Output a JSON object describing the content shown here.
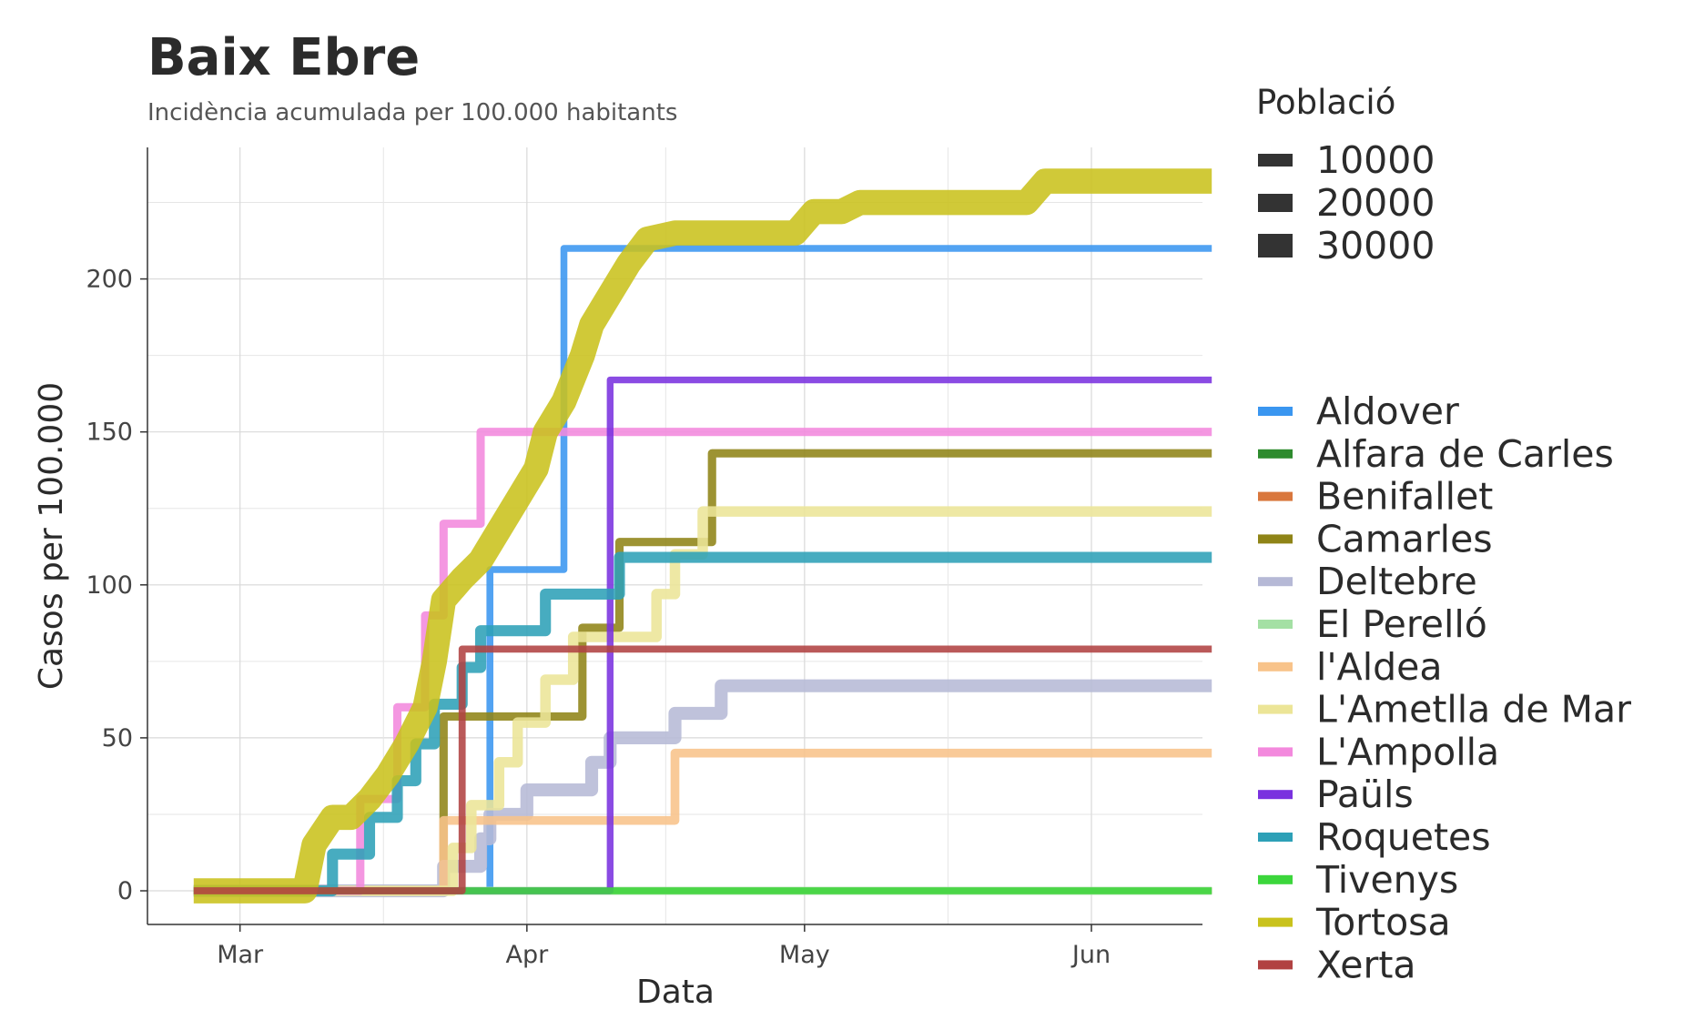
{
  "chart_data": {
    "type": "line",
    "title": "Baix Ebre",
    "subtitle": "Incidència acumulada per 100.000 habitants",
    "xlabel": "Data",
    "ylabel": "Casos per 100.000",
    "x_ticks": [
      "Mar",
      "Apr",
      "May",
      "Jun"
    ],
    "x_tick_days": [
      0,
      31,
      61,
      92
    ],
    "xlim_days": [
      -10,
      104
    ],
    "y_ticks": [
      0,
      50,
      100,
      150,
      200
    ],
    "ylim": [
      -11,
      243
    ],
    "grid": true,
    "size_legend": {
      "title": "Població",
      "entries": [
        {
          "label": "10000",
          "value": 10000
        },
        {
          "label": "20000",
          "value": 20000
        },
        {
          "label": "30000",
          "value": 30000
        }
      ]
    },
    "legend_position": "right",
    "series": [
      {
        "name": "Aldover",
        "color": "#3a96f0",
        "population": 950,
        "points": [
          [
            -5,
            0
          ],
          [
            27,
            0
          ],
          [
            27,
            105
          ],
          [
            35,
            105
          ],
          [
            35,
            210
          ],
          [
            105,
            210
          ]
        ]
      },
      {
        "name": "Alfara de Carles",
        "color": "#2e8b2e",
        "population": 380,
        "points": [
          [
            -5,
            0
          ],
          [
            105,
            0
          ]
        ]
      },
      {
        "name": "Benifallet",
        "color": "#d9773d",
        "population": 750,
        "points": [
          [
            -5,
            0
          ],
          [
            105,
            0
          ]
        ]
      },
      {
        "name": "Camarles",
        "color": "#8f8417",
        "population": 3450,
        "points": [
          [
            -5,
            0
          ],
          [
            22,
            0
          ],
          [
            22,
            57
          ],
          [
            37,
            57
          ],
          [
            37,
            86
          ],
          [
            41,
            86
          ],
          [
            41,
            114
          ],
          [
            51,
            114
          ],
          [
            51,
            143
          ],
          [
            105,
            143
          ]
        ]
      },
      {
        "name": "Deltebre",
        "color": "#b6b9d6",
        "population": 11500,
        "points": [
          [
            -5,
            0
          ],
          [
            22,
            0
          ],
          [
            22,
            8
          ],
          [
            26,
            8
          ],
          [
            26,
            17
          ],
          [
            27,
            17
          ],
          [
            27,
            25
          ],
          [
            31,
            25
          ],
          [
            31,
            33
          ],
          [
            38,
            33
          ],
          [
            38,
            42
          ],
          [
            40,
            42
          ],
          [
            40,
            50
          ],
          [
            47,
            50
          ],
          [
            47,
            58
          ],
          [
            52,
            58
          ],
          [
            52,
            67
          ],
          [
            105,
            67
          ]
        ]
      },
      {
        "name": "El Perelló",
        "color": "#a4e0a4",
        "population": 3000,
        "points": [
          [
            -5,
            0
          ],
          [
            105,
            0
          ]
        ]
      },
      {
        "name": "l'Aldea",
        "color": "#f8c38a",
        "population": 4300,
        "points": [
          [
            -5,
            0
          ],
          [
            22,
            0
          ],
          [
            22,
            23
          ],
          [
            47,
            23
          ],
          [
            47,
            45
          ],
          [
            105,
            45
          ]
        ]
      },
      {
        "name": "L'Ametlla de Mar",
        "color": "#ece597",
        "population": 7200,
        "points": [
          [
            -5,
            0
          ],
          [
            23,
            0
          ],
          [
            23,
            14
          ],
          [
            25,
            14
          ],
          [
            25,
            28
          ],
          [
            28,
            28
          ],
          [
            28,
            42
          ],
          [
            30,
            42
          ],
          [
            30,
            55
          ],
          [
            33,
            55
          ],
          [
            33,
            69
          ],
          [
            36,
            69
          ],
          [
            36,
            83
          ],
          [
            45,
            83
          ],
          [
            45,
            97
          ],
          [
            47,
            97
          ],
          [
            47,
            110
          ],
          [
            50,
            110
          ],
          [
            50,
            124
          ],
          [
            105,
            124
          ]
        ]
      },
      {
        "name": "L'Ampolla",
        "color": "#f389dd",
        "population": 3300,
        "points": [
          [
            -5,
            0
          ],
          [
            13,
            0
          ],
          [
            13,
            30
          ],
          [
            17,
            30
          ],
          [
            17,
            60
          ],
          [
            20,
            60
          ],
          [
            20,
            90
          ],
          [
            22,
            90
          ],
          [
            22,
            120
          ],
          [
            26,
            120
          ],
          [
            26,
            150
          ],
          [
            105,
            150
          ]
        ]
      },
      {
        "name": "Paüls",
        "color": "#7a32df",
        "population": 600,
        "points": [
          [
            -5,
            0
          ],
          [
            40,
            0
          ],
          [
            40,
            167
          ],
          [
            105,
            167
          ]
        ]
      },
      {
        "name": "Roquetes",
        "color": "#2da0b7",
        "population": 8200,
        "points": [
          [
            -5,
            0
          ],
          [
            10,
            0
          ],
          [
            10,
            12
          ],
          [
            14,
            12
          ],
          [
            14,
            24
          ],
          [
            17,
            24
          ],
          [
            17,
            36
          ],
          [
            19,
            36
          ],
          [
            19,
            48
          ],
          [
            21,
            48
          ],
          [
            21,
            61
          ],
          [
            24,
            61
          ],
          [
            24,
            73
          ],
          [
            26,
            73
          ],
          [
            26,
            85
          ],
          [
            33,
            85
          ],
          [
            33,
            97
          ],
          [
            41,
            97
          ],
          [
            41,
            109
          ],
          [
            105,
            109
          ]
        ]
      },
      {
        "name": "Tivenys",
        "color": "#3cd63c",
        "population": 900,
        "points": [
          [
            -5,
            0
          ],
          [
            105,
            0
          ]
        ]
      },
      {
        "name": "Tortosa",
        "color": "#c9c21c",
        "population": 33000,
        "points": [
          [
            -5,
            0
          ],
          [
            7,
            0
          ],
          [
            8,
            15
          ],
          [
            10,
            24
          ],
          [
            12,
            24
          ],
          [
            14,
            30
          ],
          [
            16,
            38
          ],
          [
            18,
            48
          ],
          [
            20,
            60
          ],
          [
            21,
            75
          ],
          [
            22,
            95
          ],
          [
            24,
            102
          ],
          [
            26,
            108
          ],
          [
            28,
            118
          ],
          [
            30,
            128
          ],
          [
            32,
            138
          ],
          [
            33,
            150
          ],
          [
            35,
            160
          ],
          [
            37,
            175
          ],
          [
            38,
            185
          ],
          [
            40,
            195
          ],
          [
            42,
            205
          ],
          [
            44,
            213
          ],
          [
            47,
            215
          ],
          [
            52,
            215
          ],
          [
            60,
            215
          ],
          [
            62,
            222
          ],
          [
            65,
            222
          ],
          [
            67,
            225
          ],
          [
            85,
            225
          ],
          [
            87,
            232
          ],
          [
            105,
            232
          ]
        ]
      },
      {
        "name": "Xerta",
        "color": "#b14242",
        "population": 1200,
        "points": [
          [
            -5,
            0
          ],
          [
            24,
            0
          ],
          [
            24,
            79
          ],
          [
            105,
            79
          ]
        ]
      }
    ]
  }
}
